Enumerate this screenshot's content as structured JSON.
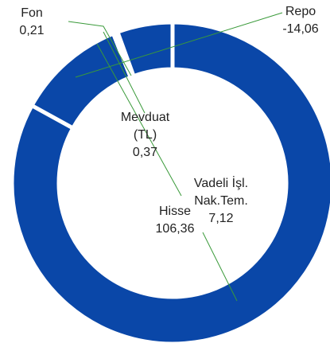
{
  "chart_data": {
    "type": "donut",
    "categories": [
      "Hisse",
      "Repo",
      "Fon",
      "Mevduat (TL)",
      "Vadeli İşl. Nak.Tem."
    ],
    "values": [
      106.36,
      -14.06,
      0.21,
      0.37,
      7.12
    ],
    "value_labels": [
      "106,36",
      "-14,06",
      "0,21",
      "0,37",
      "7,12"
    ],
    "color": "#0a47a8",
    "leader_color": "#3a9a3a"
  }
}
